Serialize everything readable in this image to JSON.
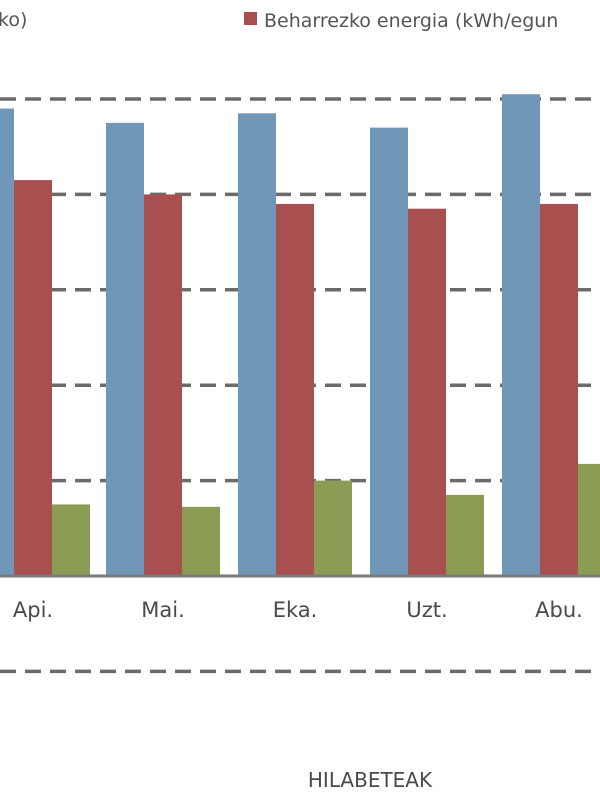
{
  "legend": {
    "left_fragment": "ko)",
    "right_label": "Beharrezko energia (kWh/egun"
  },
  "chart_data": {
    "type": "bar",
    "categories": [
      "Api.",
      "Mai.",
      "Eka.",
      "Uzt.",
      "Abu."
    ],
    "series": [
      {
        "color": "#7096b8",
        "values": [
          9.8,
          9.5,
          9.7,
          9.4,
          10.1
        ]
      },
      {
        "name": "Beharrezko energia (kWh/egun",
        "color": "#a84f4f",
        "values": [
          8.3,
          8.0,
          7.8,
          7.7,
          7.8
        ]
      },
      {
        "color": "#8b9c55",
        "values": [
          1.5,
          1.45,
          2.0,
          1.7,
          2.35
        ]
      }
    ],
    "xlabel": "HILABETEAK",
    "ylim": [
      -2,
      10
    ],
    "gridlines": [
      -2,
      0,
      2,
      4,
      6,
      8,
      10
    ],
    "grid": true,
    "legend_position": "top"
  }
}
